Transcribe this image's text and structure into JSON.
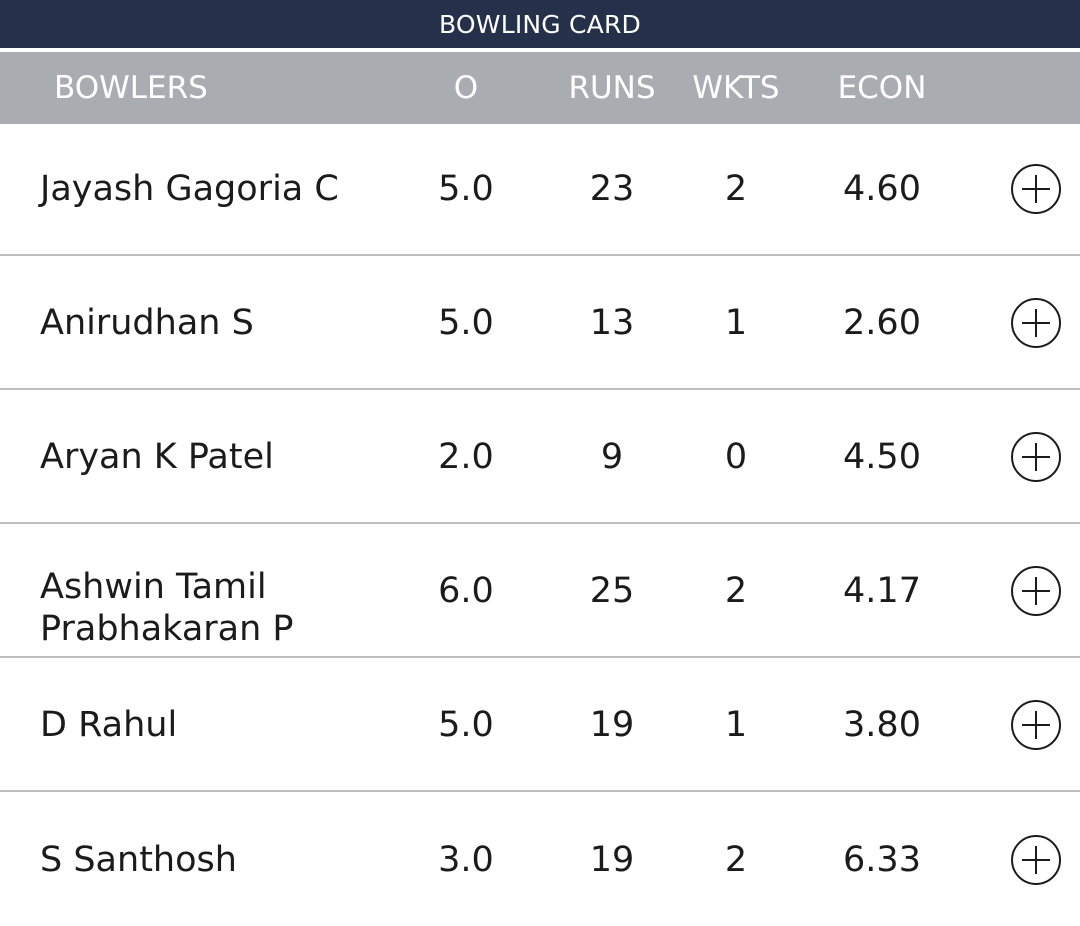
{
  "card": {
    "title": "BOWLING CARD"
  },
  "columns": {
    "bowlers": "BOWLERS",
    "overs": "O",
    "runs": "RUNS",
    "wickets": "WKTS",
    "economy": "ECON"
  },
  "bowlers": [
    {
      "name": "Jayash Gagoria C",
      "overs": "5.0",
      "runs": "23",
      "wickets": "2",
      "economy": "4.60",
      "action_icon": "plus-circle-icon"
    },
    {
      "name": "Anirudhan S",
      "overs": "5.0",
      "runs": "13",
      "wickets": "1",
      "economy": "2.60",
      "action_icon": "plus-circle-icon"
    },
    {
      "name": "Aryan K Patel",
      "overs": "2.0",
      "runs": "9",
      "wickets": "0",
      "economy": "4.50",
      "action_icon": "plus-circle-icon"
    },
    {
      "name": "Ashwin Tamil Prabhakaran P",
      "overs": "6.0",
      "runs": "25",
      "wickets": "2",
      "economy": "4.17",
      "action_icon": "plus-circle-icon"
    },
    {
      "name": "D Rahul",
      "overs": "5.0",
      "runs": "19",
      "wickets": "1",
      "economy": "3.80",
      "action_icon": "plus-circle-icon"
    },
    {
      "name": "S Santhosh",
      "overs": "3.0",
      "runs": "19",
      "wickets": "2",
      "economy": "6.33",
      "action_icon": "plus-circle-icon"
    }
  ],
  "colors": {
    "title_bar": "#25304a",
    "header_bar": "#a9adb1",
    "row_divider": "#bdbdbd",
    "text": "#1b1b1b"
  }
}
